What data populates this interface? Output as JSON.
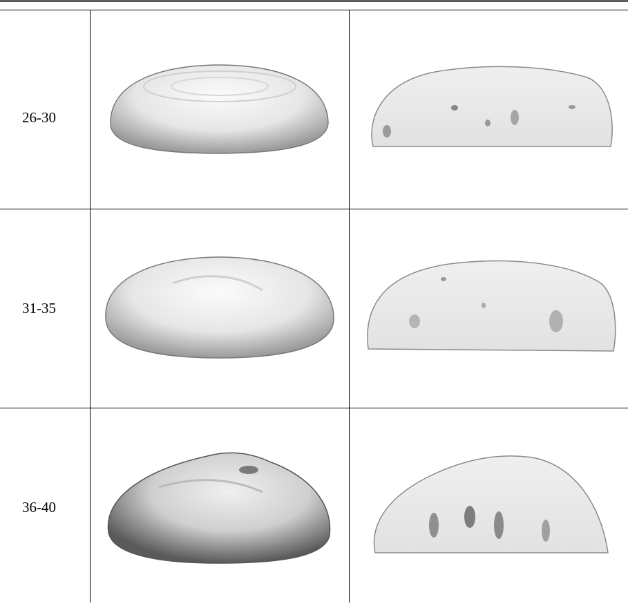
{
  "table": {
    "rows": [
      {
        "label": "26-30"
      },
      {
        "label": "31-35"
      },
      {
        "label": "36-40"
      }
    ]
  }
}
